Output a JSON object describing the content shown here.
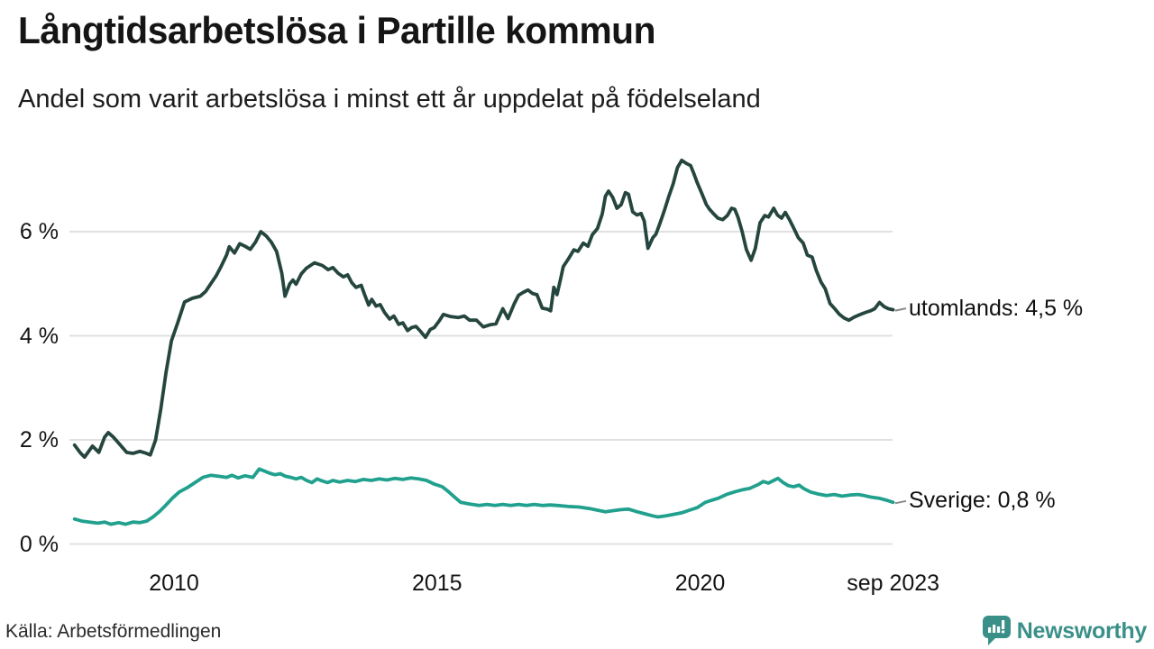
{
  "header": {
    "title": "Långtidsarbetslösa i Partille kommun",
    "subtitle": "Andel som varit arbetslösa i minst ett år uppdelat på födelseland"
  },
  "footer": {
    "source": "Källa: Arbetsförmedlingen",
    "brand": "Newsworthy"
  },
  "colors": {
    "utomlands_line": "#25463e",
    "sverige_line": "#21a08e",
    "grid": "#e0e0e0",
    "connector": "#8a8a8a",
    "brand": "#3a9089"
  },
  "chart_data": {
    "type": "line",
    "title": "Långtidsarbetslösa i Partille kommun",
    "subtitle": "Andel som varit arbetslösa i minst ett år uppdelat på födelseland",
    "xlabel": "",
    "ylabel": "",
    "grid": "horizontal",
    "legend_position": "right-end-labels",
    "xlim": [
      2008.05,
      2023.72
    ],
    "ylim": [
      0,
      7.6
    ],
    "y_ticks": [
      {
        "label": "0 %",
        "value": 0
      },
      {
        "label": "2 %",
        "value": 2
      },
      {
        "label": "4 %",
        "value": 4
      },
      {
        "label": "6 %",
        "value": 6
      }
    ],
    "x_ticks": [
      {
        "label": "2010",
        "year": 2010
      },
      {
        "label": "2015",
        "year": 2015
      },
      {
        "label": "2020",
        "year": 2020
      },
      {
        "label": "sep 2023",
        "year": 2023.67
      }
    ],
    "series": [
      {
        "name": "utomlands",
        "end_label": "utomlands: 4,5 %",
        "end_value": 4.5,
        "color": "#25463e",
        "points": [
          [
            2008.11,
            1.9
          ],
          [
            2008.22,
            1.75
          ],
          [
            2008.3,
            1.67
          ],
          [
            2008.45,
            1.88
          ],
          [
            2008.57,
            1.76
          ],
          [
            2008.68,
            2.05
          ],
          [
            2008.75,
            2.14
          ],
          [
            2008.85,
            2.05
          ],
          [
            2008.98,
            1.9
          ],
          [
            2009.1,
            1.76
          ],
          [
            2009.22,
            1.74
          ],
          [
            2009.35,
            1.78
          ],
          [
            2009.45,
            1.75
          ],
          [
            2009.55,
            1.71
          ],
          [
            2009.65,
            2.0
          ],
          [
            2009.75,
            2.6
          ],
          [
            2009.85,
            3.3
          ],
          [
            2009.95,
            3.9
          ],
          [
            2010.07,
            4.25
          ],
          [
            2010.2,
            4.65
          ],
          [
            2010.35,
            4.72
          ],
          [
            2010.5,
            4.76
          ],
          [
            2010.6,
            4.85
          ],
          [
            2010.7,
            5.0
          ],
          [
            2010.8,
            5.15
          ],
          [
            2010.9,
            5.34
          ],
          [
            2011.0,
            5.55
          ],
          [
            2011.05,
            5.71
          ],
          [
            2011.15,
            5.59
          ],
          [
            2011.25,
            5.77
          ],
          [
            2011.35,
            5.72
          ],
          [
            2011.45,
            5.66
          ],
          [
            2011.55,
            5.8
          ],
          [
            2011.65,
            6.0
          ],
          [
            2011.75,
            5.92
          ],
          [
            2011.85,
            5.8
          ],
          [
            2011.95,
            5.62
          ],
          [
            2012.05,
            5.2
          ],
          [
            2012.11,
            4.76
          ],
          [
            2012.2,
            5.0
          ],
          [
            2012.26,
            5.07
          ],
          [
            2012.32,
            4.99
          ],
          [
            2012.42,
            5.19
          ],
          [
            2012.52,
            5.3
          ],
          [
            2012.67,
            5.4
          ],
          [
            2012.82,
            5.35
          ],
          [
            2012.93,
            5.27
          ],
          [
            2013.02,
            5.31
          ],
          [
            2013.12,
            5.2
          ],
          [
            2013.22,
            5.13
          ],
          [
            2013.3,
            5.17
          ],
          [
            2013.38,
            5.02
          ],
          [
            2013.46,
            4.93
          ],
          [
            2013.56,
            4.97
          ],
          [
            2013.62,
            4.8
          ],
          [
            2013.7,
            4.59
          ],
          [
            2013.76,
            4.7
          ],
          [
            2013.84,
            4.57
          ],
          [
            2013.92,
            4.6
          ],
          [
            2014.0,
            4.45
          ],
          [
            2014.1,
            4.32
          ],
          [
            2014.18,
            4.38
          ],
          [
            2014.27,
            4.22
          ],
          [
            2014.35,
            4.25
          ],
          [
            2014.44,
            4.1
          ],
          [
            2014.52,
            4.16
          ],
          [
            2014.6,
            4.18
          ],
          [
            2014.69,
            4.08
          ],
          [
            2014.78,
            3.97
          ],
          [
            2014.87,
            4.12
          ],
          [
            2014.95,
            4.16
          ],
          [
            2015.05,
            4.3
          ],
          [
            2015.12,
            4.41
          ],
          [
            2015.25,
            4.37
          ],
          [
            2015.4,
            4.35
          ],
          [
            2015.52,
            4.38
          ],
          [
            2015.62,
            4.3
          ],
          [
            2015.75,
            4.3
          ],
          [
            2015.88,
            4.17
          ],
          [
            2016.0,
            4.21
          ],
          [
            2016.12,
            4.23
          ],
          [
            2016.25,
            4.52
          ],
          [
            2016.35,
            4.33
          ],
          [
            2016.47,
            4.62
          ],
          [
            2016.55,
            4.78
          ],
          [
            2016.65,
            4.84
          ],
          [
            2016.73,
            4.88
          ],
          [
            2016.82,
            4.81
          ],
          [
            2016.9,
            4.79
          ],
          [
            2017.0,
            4.53
          ],
          [
            2017.1,
            4.51
          ],
          [
            2017.16,
            4.48
          ],
          [
            2017.22,
            4.93
          ],
          [
            2017.28,
            4.79
          ],
          [
            2017.35,
            5.1
          ],
          [
            2017.4,
            5.33
          ],
          [
            2017.5,
            5.48
          ],
          [
            2017.6,
            5.65
          ],
          [
            2017.68,
            5.62
          ],
          [
            2017.78,
            5.78
          ],
          [
            2017.87,
            5.72
          ],
          [
            2017.95,
            5.94
          ],
          [
            2018.05,
            6.06
          ],
          [
            2018.14,
            6.34
          ],
          [
            2018.2,
            6.68
          ],
          [
            2018.26,
            6.78
          ],
          [
            2018.34,
            6.66
          ],
          [
            2018.42,
            6.45
          ],
          [
            2018.5,
            6.52
          ],
          [
            2018.58,
            6.75
          ],
          [
            2018.64,
            6.72
          ],
          [
            2018.72,
            6.38
          ],
          [
            2018.8,
            6.32
          ],
          [
            2018.88,
            6.35
          ],
          [
            2018.94,
            6.2
          ],
          [
            2019.01,
            5.68
          ],
          [
            2019.1,
            5.88
          ],
          [
            2019.16,
            5.95
          ],
          [
            2019.24,
            6.17
          ],
          [
            2019.32,
            6.4
          ],
          [
            2019.4,
            6.66
          ],
          [
            2019.49,
            6.92
          ],
          [
            2019.57,
            7.23
          ],
          [
            2019.65,
            7.37
          ],
          [
            2019.74,
            7.31
          ],
          [
            2019.82,
            7.27
          ],
          [
            2019.88,
            7.12
          ],
          [
            2019.95,
            6.93
          ],
          [
            2020.03,
            6.74
          ],
          [
            2020.12,
            6.52
          ],
          [
            2020.18,
            6.43
          ],
          [
            2020.26,
            6.34
          ],
          [
            2020.34,
            6.26
          ],
          [
            2020.43,
            6.23
          ],
          [
            2020.52,
            6.31
          ],
          [
            2020.6,
            6.45
          ],
          [
            2020.66,
            6.43
          ],
          [
            2020.72,
            6.28
          ],
          [
            2020.8,
            6.0
          ],
          [
            2020.88,
            5.66
          ],
          [
            2020.97,
            5.45
          ],
          [
            2021.05,
            5.68
          ],
          [
            2021.14,
            6.17
          ],
          [
            2021.23,
            6.31
          ],
          [
            2021.3,
            6.28
          ],
          [
            2021.4,
            6.45
          ],
          [
            2021.47,
            6.32
          ],
          [
            2021.55,
            6.26
          ],
          [
            2021.62,
            6.37
          ],
          [
            2021.7,
            6.23
          ],
          [
            2021.79,
            6.05
          ],
          [
            2021.87,
            5.88
          ],
          [
            2021.96,
            5.78
          ],
          [
            2022.04,
            5.55
          ],
          [
            2022.13,
            5.51
          ],
          [
            2022.21,
            5.25
          ],
          [
            2022.3,
            5.03
          ],
          [
            2022.38,
            4.9
          ],
          [
            2022.47,
            4.62
          ],
          [
            2022.56,
            4.52
          ],
          [
            2022.65,
            4.41
          ],
          [
            2022.74,
            4.34
          ],
          [
            2022.83,
            4.3
          ],
          [
            2022.93,
            4.36
          ],
          [
            2023.05,
            4.41
          ],
          [
            2023.15,
            4.45
          ],
          [
            2023.24,
            4.48
          ],
          [
            2023.32,
            4.52
          ],
          [
            2023.41,
            4.64
          ],
          [
            2023.5,
            4.56
          ],
          [
            2023.58,
            4.52
          ],
          [
            2023.67,
            4.5
          ]
        ]
      },
      {
        "name": "Sverige",
        "end_label": "Sverige: 0,8 %",
        "end_value": 0.8,
        "color": "#21a08e",
        "points": [
          [
            2008.11,
            0.48
          ],
          [
            2008.25,
            0.44
          ],
          [
            2008.4,
            0.42
          ],
          [
            2008.55,
            0.4
          ],
          [
            2008.68,
            0.42
          ],
          [
            2008.8,
            0.38
          ],
          [
            2008.95,
            0.41
          ],
          [
            2009.08,
            0.38
          ],
          [
            2009.22,
            0.42
          ],
          [
            2009.35,
            0.41
          ],
          [
            2009.48,
            0.44
          ],
          [
            2009.6,
            0.52
          ],
          [
            2009.72,
            0.62
          ],
          [
            2009.85,
            0.75
          ],
          [
            2009.97,
            0.88
          ],
          [
            2010.1,
            1.0
          ],
          [
            2010.25,
            1.08
          ],
          [
            2010.4,
            1.18
          ],
          [
            2010.55,
            1.28
          ],
          [
            2010.7,
            1.32
          ],
          [
            2010.85,
            1.3
          ],
          [
            2011.0,
            1.28
          ],
          [
            2011.1,
            1.32
          ],
          [
            2011.22,
            1.27
          ],
          [
            2011.35,
            1.31
          ],
          [
            2011.5,
            1.28
          ],
          [
            2011.62,
            1.44
          ],
          [
            2011.72,
            1.4
          ],
          [
            2011.82,
            1.36
          ],
          [
            2011.92,
            1.33
          ],
          [
            2012.02,
            1.35
          ],
          [
            2012.12,
            1.3
          ],
          [
            2012.22,
            1.28
          ],
          [
            2012.32,
            1.25
          ],
          [
            2012.42,
            1.28
          ],
          [
            2012.52,
            1.22
          ],
          [
            2012.62,
            1.18
          ],
          [
            2012.72,
            1.25
          ],
          [
            2012.82,
            1.21
          ],
          [
            2012.92,
            1.18
          ],
          [
            2013.02,
            1.22
          ],
          [
            2013.15,
            1.19
          ],
          [
            2013.3,
            1.22
          ],
          [
            2013.45,
            1.2
          ],
          [
            2013.6,
            1.24
          ],
          [
            2013.75,
            1.22
          ],
          [
            2013.9,
            1.25
          ],
          [
            2014.05,
            1.23
          ],
          [
            2014.2,
            1.26
          ],
          [
            2014.35,
            1.24
          ],
          [
            2014.5,
            1.27
          ],
          [
            2014.65,
            1.25
          ],
          [
            2014.8,
            1.22
          ],
          [
            2014.95,
            1.15
          ],
          [
            2015.1,
            1.1
          ],
          [
            2015.2,
            1.02
          ],
          [
            2015.3,
            0.93
          ],
          [
            2015.45,
            0.8
          ],
          [
            2015.6,
            0.77
          ],
          [
            2015.8,
            0.74
          ],
          [
            2015.95,
            0.76
          ],
          [
            2016.1,
            0.74
          ],
          [
            2016.25,
            0.76
          ],
          [
            2016.4,
            0.74
          ],
          [
            2016.55,
            0.76
          ],
          [
            2016.7,
            0.74
          ],
          [
            2016.85,
            0.76
          ],
          [
            2017.0,
            0.74
          ],
          [
            2017.15,
            0.75
          ],
          [
            2017.3,
            0.74
          ],
          [
            2017.5,
            0.72
          ],
          [
            2017.7,
            0.71
          ],
          [
            2017.9,
            0.68
          ],
          [
            2018.05,
            0.65
          ],
          [
            2018.2,
            0.62
          ],
          [
            2018.35,
            0.64
          ],
          [
            2018.5,
            0.66
          ],
          [
            2018.64,
            0.67
          ],
          [
            2018.8,
            0.62
          ],
          [
            2018.95,
            0.58
          ],
          [
            2019.1,
            0.54
          ],
          [
            2019.2,
            0.52
          ],
          [
            2019.35,
            0.54
          ],
          [
            2019.5,
            0.57
          ],
          [
            2019.65,
            0.6
          ],
          [
            2019.8,
            0.65
          ],
          [
            2019.95,
            0.7
          ],
          [
            2020.1,
            0.8
          ],
          [
            2020.22,
            0.84
          ],
          [
            2020.35,
            0.88
          ],
          [
            2020.5,
            0.95
          ],
          [
            2020.65,
            1.0
          ],
          [
            2020.8,
            1.04
          ],
          [
            2020.95,
            1.07
          ],
          [
            2021.1,
            1.14
          ],
          [
            2021.2,
            1.2
          ],
          [
            2021.3,
            1.17
          ],
          [
            2021.4,
            1.22
          ],
          [
            2021.48,
            1.26
          ],
          [
            2021.58,
            1.18
          ],
          [
            2021.68,
            1.12
          ],
          [
            2021.78,
            1.1
          ],
          [
            2021.88,
            1.13
          ],
          [
            2021.98,
            1.06
          ],
          [
            2022.1,
            1.0
          ],
          [
            2022.25,
            0.96
          ],
          [
            2022.4,
            0.93
          ],
          [
            2022.55,
            0.95
          ],
          [
            2022.7,
            0.92
          ],
          [
            2022.85,
            0.94
          ],
          [
            2023.0,
            0.95
          ],
          [
            2023.12,
            0.93
          ],
          [
            2023.25,
            0.9
          ],
          [
            2023.4,
            0.88
          ],
          [
            2023.55,
            0.84
          ],
          [
            2023.67,
            0.8
          ]
        ]
      }
    ]
  }
}
